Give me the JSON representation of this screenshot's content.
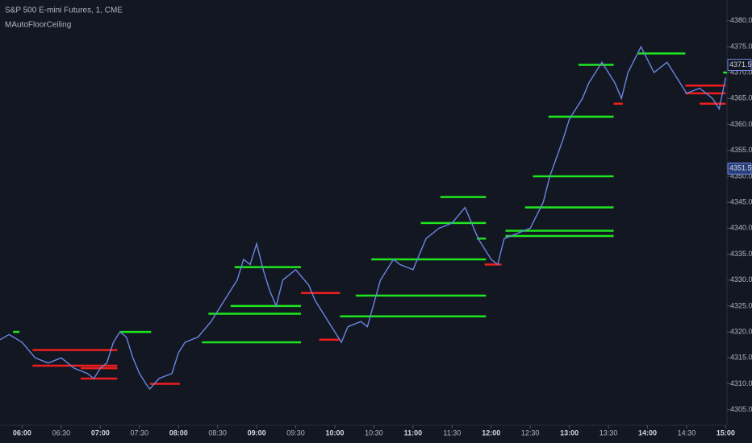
{
  "chart_data": {
    "type": "line",
    "title": "S&P 500 E-mini Futures, 1, CME",
    "subtitle": "MAutoFloorCeiling",
    "x": [
      "05:43",
      "05:50",
      "06:00",
      "06:10",
      "06:20",
      "06:30",
      "06:40",
      "06:50",
      "06:55",
      "07:00",
      "07:05",
      "07:10",
      "07:15",
      "07:20",
      "07:25",
      "07:30",
      "07:35",
      "07:38",
      "07:45",
      "07:55",
      "08:00",
      "08:05",
      "08:15",
      "08:25",
      "08:35",
      "08:45",
      "08:50",
      "08:55",
      "09:00",
      "09:05",
      "09:10",
      "09:15",
      "09:20",
      "09:30",
      "09:40",
      "09:45",
      "09:55",
      "10:00",
      "10:05",
      "10:10",
      "10:20",
      "10:25",
      "10:35",
      "10:45",
      "10:50",
      "11:00",
      "11:10",
      "11:20",
      "11:30",
      "11:40",
      "11:50",
      "12:00",
      "12:05",
      "12:10",
      "12:20",
      "12:30",
      "12:40",
      "12:45",
      "12:55",
      "13:00",
      "13:10",
      "13:15",
      "13:25",
      "13:35",
      "13:40",
      "13:45",
      "13:55",
      "14:05",
      "14:15",
      "14:25",
      "14:30",
      "14:40",
      "14:50",
      "14:55",
      "15:00"
    ],
    "series": [
      {
        "color": "#6a86e0",
        "values": [
          4318.5,
          4319.5,
          4318,
          4315,
          4314,
          4315,
          4313,
          4312,
          4311,
          4313,
          4314,
          4318,
          4320,
          4319,
          4315,
          4312,
          4310,
          4309,
          4311,
          4312,
          4316,
          4318,
          4319,
          4322,
          4326,
          4330,
          4334,
          4333,
          4337,
          4332,
          4328,
          4325,
          4330,
          4332,
          4329,
          4326,
          4322,
          4320,
          4318,
          4321,
          4322,
          4321,
          4330,
          4334,
          4333,
          4332,
          4338,
          4340,
          4341,
          4344,
          4338,
          4334,
          4333,
          4338,
          4339,
          4340,
          4345,
          4350,
          4357,
          4361,
          4365,
          4368,
          4372,
          4368,
          4365,
          4370,
          4375,
          4370,
          4372,
          4368,
          4366,
          4367,
          4365,
          4363,
          4369
        ]
      }
    ],
    "levels": [
      {
        "color": "#1ee61e",
        "start": [
          "05:53",
          "07:15",
          "08:18",
          "08:23",
          "08:40",
          "08:43",
          "10:04",
          "10:16",
          "10:28",
          "11:06",
          "11:21",
          "11:49",
          "12:11",
          "12:11",
          "12:26",
          "12:32",
          "12:44",
          "13:07",
          "13:53",
          "14:58"
        ],
        "end": [
          "05:58",
          "07:39",
          "09:34",
          "09:34",
          "09:34",
          "09:34",
          "11:56",
          "11:56",
          "11:56",
          "11:56",
          "11:56",
          "11:56",
          "13:34",
          "13:34",
          "13:34",
          "13:34",
          "13:34",
          "13:34",
          "14:29",
          "15:01"
        ],
        "values": [
          4320,
          4320,
          4318,
          4323.5,
          4325,
          4332.5,
          4323,
          4327,
          4334,
          4341,
          4346,
          4338,
          4338.5,
          4339.5,
          4344,
          4350,
          4361.5,
          4371.5,
          4373.7,
          4370
        ]
      },
      {
        "color": "#f01e1e",
        "start": [
          "06:08",
          "06:08",
          "06:45",
          "06:45",
          "07:38",
          "09:34",
          "09:48",
          "11:55",
          "13:34",
          "14:29",
          "14:29",
          "14:40"
        ],
        "end": [
          "07:13",
          "07:13",
          "07:13",
          "07:13",
          "08:01",
          "10:04",
          "10:04",
          "12:08",
          "13:41",
          "15:00",
          "15:00",
          "15:00"
        ],
        "values": [
          4316.5,
          4313.5,
          4313,
          4311,
          4310,
          4327.5,
          4318.5,
          4333,
          4364,
          4367.5,
          4366,
          4364
        ]
      }
    ],
    "xlim": [
      "05:43",
      "15:01"
    ],
    "xticks": [
      "06:00",
      "06:30",
      "07:00",
      "07:30",
      "08:00",
      "08:30",
      "09:00",
      "09:30",
      "10:00",
      "10:30",
      "11:00",
      "11:30",
      "12:00",
      "12:30",
      "13:00",
      "13:30",
      "14:00",
      "14:30",
      "15:00"
    ],
    "ylim": [
      4302,
      4384
    ],
    "yticks": [
      {
        "value": 4305,
        "label": "4305.00"
      },
      {
        "value": 4310,
        "label": "4310.00"
      },
      {
        "value": 4315,
        "label": "4315.00"
      },
      {
        "value": 4320,
        "label": "4320.00"
      },
      {
        "value": 4325,
        "label": "4325.00"
      },
      {
        "value": 4330,
        "label": "4330.00"
      },
      {
        "value": 4335,
        "label": "4335.00"
      },
      {
        "value": 4340,
        "label": "4340.00"
      },
      {
        "value": 4345,
        "label": "4345.00"
      },
      {
        "value": 4350,
        "label": "4350.00"
      },
      {
        "value": 4355,
        "label": "4355.00"
      },
      {
        "value": 4360,
        "label": "4360.00"
      },
      {
        "value": 4365,
        "label": "4365.00"
      },
      {
        "value": 4370,
        "label": "4370.00"
      },
      {
        "value": 4375,
        "label": "4375.00"
      },
      {
        "value": 4380,
        "label": "4380.00"
      }
    ],
    "price_labels": [
      {
        "value": 4371.5,
        "label": "4371.50",
        "color": "#131722"
      },
      {
        "value": 4351.5,
        "label": "4351.50",
        "color": "#2a3f7a"
      }
    ]
  }
}
